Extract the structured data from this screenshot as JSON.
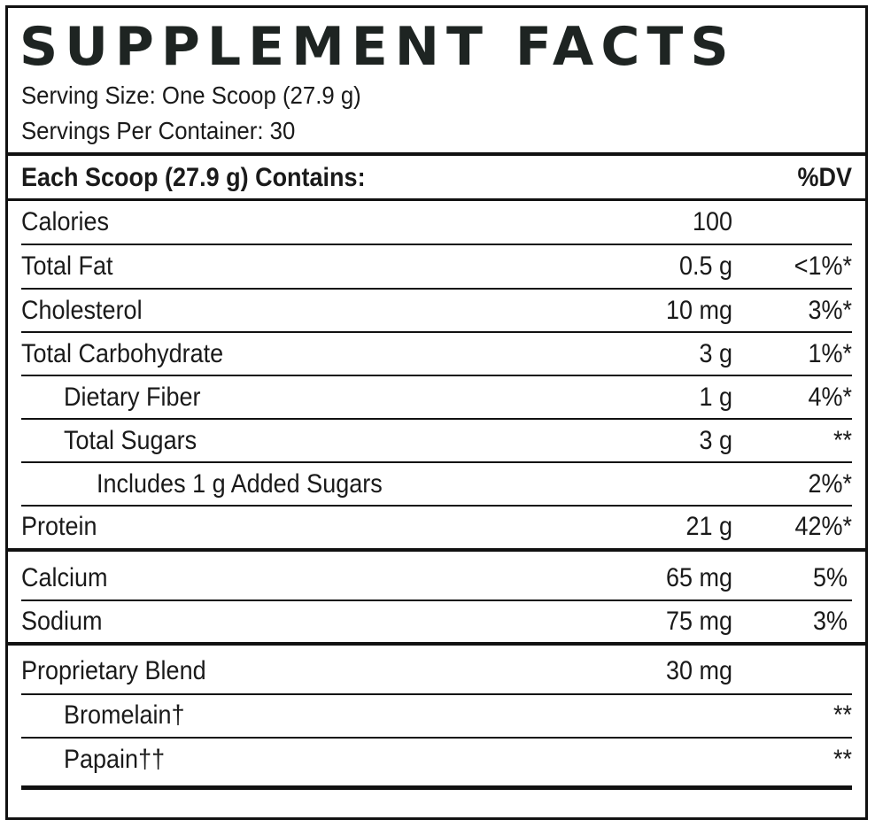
{
  "title": "SUPPLEMENT FACTS",
  "serving_size": "Serving Size: One Scoop (27.9 g)",
  "servings_per_container": "Servings Per Container: 30",
  "header": {
    "label": "Each Scoop (27.9 g) Contains:",
    "dv": "%DV"
  },
  "rows": [
    {
      "name": "Calories",
      "amount": "100",
      "dv": ""
    },
    {
      "name": "Total Fat",
      "amount": "0.5 g",
      "dv": "<1%*"
    },
    {
      "name": "Cholesterol",
      "amount": "10 mg",
      "dv": "3%*"
    },
    {
      "name": "Total Carbohydrate",
      "amount": "3 g",
      "dv": "1%*"
    },
    {
      "name": "Dietary Fiber",
      "amount": "1 g",
      "dv": "4%*"
    },
    {
      "name": "Total Sugars",
      "amount": "3 g",
      "dv": "**"
    },
    {
      "name": "Includes 1 g Added Sugars",
      "amount": "",
      "dv": "2%*"
    },
    {
      "name": "Protein",
      "amount": "21 g",
      "dv": "42%*"
    },
    {
      "name": "Calcium",
      "amount": "65 mg",
      "dv": "5%"
    },
    {
      "name": "Sodium",
      "amount": "75 mg",
      "dv": "3%"
    },
    {
      "name": "Proprietary Blend",
      "amount": "30 mg",
      "dv": ""
    },
    {
      "name": "Bromelain†",
      "amount": "",
      "dv": "**"
    },
    {
      "name": "Papain††",
      "amount": "",
      "dv": "**"
    }
  ]
}
